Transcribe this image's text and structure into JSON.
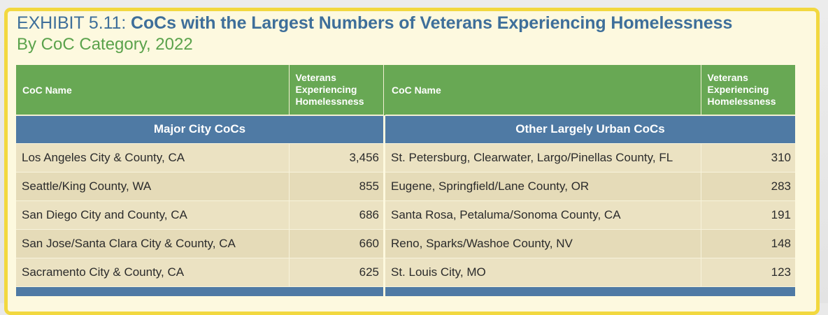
{
  "title": {
    "prefix": "EXHIBIT 5.11:",
    "main": "CoCs with the Largest Numbers of Veterans Experiencing Homelessness",
    "subtitle": "By CoC Category, 2022"
  },
  "table": {
    "headers": {
      "name": "CoC Name",
      "value_line1": "Veterans",
      "value_line2": "Experiencing",
      "value_line3": "Homelessness"
    },
    "left": {
      "category": "Major City CoCs",
      "rows": [
        {
          "name": "Los Angeles City & County, CA",
          "value": "3,456"
        },
        {
          "name": "Seattle/King County, WA",
          "value": "855"
        },
        {
          "name": "San Diego City and County, CA",
          "value": "686"
        },
        {
          "name": "San Jose/Santa Clara City & County, CA",
          "value": "660"
        },
        {
          "name": "Sacramento City & County, CA",
          "value": "625"
        }
      ]
    },
    "right": {
      "category": "Other Largely Urban CoCs",
      "rows": [
        {
          "name": "St. Petersburg, Clearwater, Largo/Pinellas County, FL",
          "value": "310"
        },
        {
          "name": "Eugene, Springfield/Lane County, OR",
          "value": "283"
        },
        {
          "name": "Santa Rosa, Petaluma/Sonoma County, CA",
          "value": "191"
        },
        {
          "name": "Reno, Sparks/Washoe County, NV",
          "value": "148"
        },
        {
          "name": "St. Louis City, MO",
          "value": "123"
        }
      ]
    }
  },
  "colors": {
    "header_green": "#68a854",
    "category_blue": "#4f7aa4",
    "title_blue": "#3e6f9a",
    "subtitle_green": "#5aa24b",
    "frame_yellow": "#f2d83f",
    "panel_cream": "#fdf9df"
  }
}
